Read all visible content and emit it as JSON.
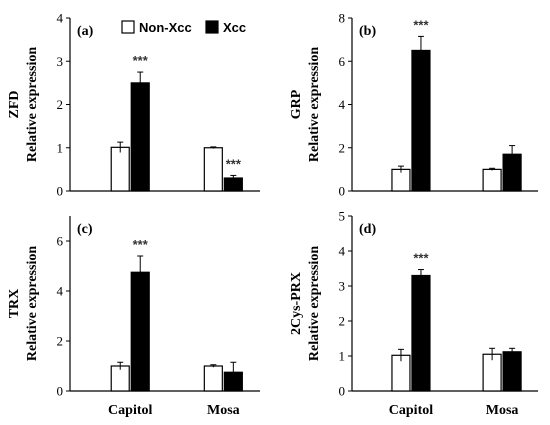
{
  "legend": {
    "items": [
      {
        "label": "Non-Xcc",
        "color": "#ffffff"
      },
      {
        "label": "Xcc",
        "color": "#000000"
      }
    ]
  },
  "colors": {
    "non_xcc": "#ffffff",
    "xcc": "#000000",
    "axis": "#000000"
  },
  "chart_data": [
    {
      "panel": "(a)",
      "type": "bar",
      "gene": "ZFD",
      "ylabel": "Relative expression",
      "categories": [
        "Capitol",
        "Mosa"
      ],
      "ylim": [
        0,
        4
      ],
      "yticks": [
        0,
        1,
        2,
        3,
        4
      ],
      "series": [
        {
          "name": "Non-Xcc",
          "values": [
            1.01,
            1.0
          ],
          "errors": [
            0.12,
            0.02
          ]
        },
        {
          "name": "Xcc",
          "values": [
            2.5,
            0.3
          ],
          "errors": [
            0.25,
            0.06
          ]
        }
      ],
      "significance": [
        "***",
        "***"
      ]
    },
    {
      "panel": "(b)",
      "type": "bar",
      "gene": "GRP",
      "ylabel": "Relative expression",
      "categories": [
        "Capitol",
        "Mosa"
      ],
      "ylim": [
        0,
        8
      ],
      "yticks": [
        0,
        2,
        4,
        6,
        8
      ],
      "series": [
        {
          "name": "Non-Xcc",
          "values": [
            1.0,
            1.0
          ],
          "errors": [
            0.15,
            0.05
          ]
        },
        {
          "name": "Xcc",
          "values": [
            6.5,
            1.7
          ],
          "errors": [
            0.65,
            0.4
          ]
        }
      ],
      "significance": [
        "***",
        ""
      ]
    },
    {
      "panel": "(c)",
      "type": "bar",
      "gene": "TRX",
      "ylabel": "Relative expression",
      "categories": [
        "Capitol",
        "Mosa"
      ],
      "ylim": [
        0,
        7
      ],
      "yticks": [
        0,
        2,
        4,
        6
      ],
      "series": [
        {
          "name": "Non-Xcc",
          "values": [
            1.0,
            1.0
          ],
          "errors": [
            0.15,
            0.05
          ]
        },
        {
          "name": "Xcc",
          "values": [
            4.75,
            0.75
          ],
          "errors": [
            0.65,
            0.4
          ]
        }
      ],
      "significance": [
        "***",
        ""
      ]
    },
    {
      "panel": "(d)",
      "type": "bar",
      "gene": "2Cys-PRX",
      "ylabel": "Relative expression",
      "categories": [
        "Capitol",
        "Mosa"
      ],
      "ylim": [
        0,
        5
      ],
      "yticks": [
        0,
        1,
        2,
        3,
        4,
        5
      ],
      "series": [
        {
          "name": "Non-Xcc",
          "values": [
            1.02,
            1.05
          ],
          "errors": [
            0.17,
            0.17
          ]
        },
        {
          "name": "Xcc",
          "values": [
            3.3,
            1.12
          ],
          "errors": [
            0.17,
            0.1
          ]
        }
      ],
      "significance": [
        "***",
        ""
      ]
    }
  ]
}
